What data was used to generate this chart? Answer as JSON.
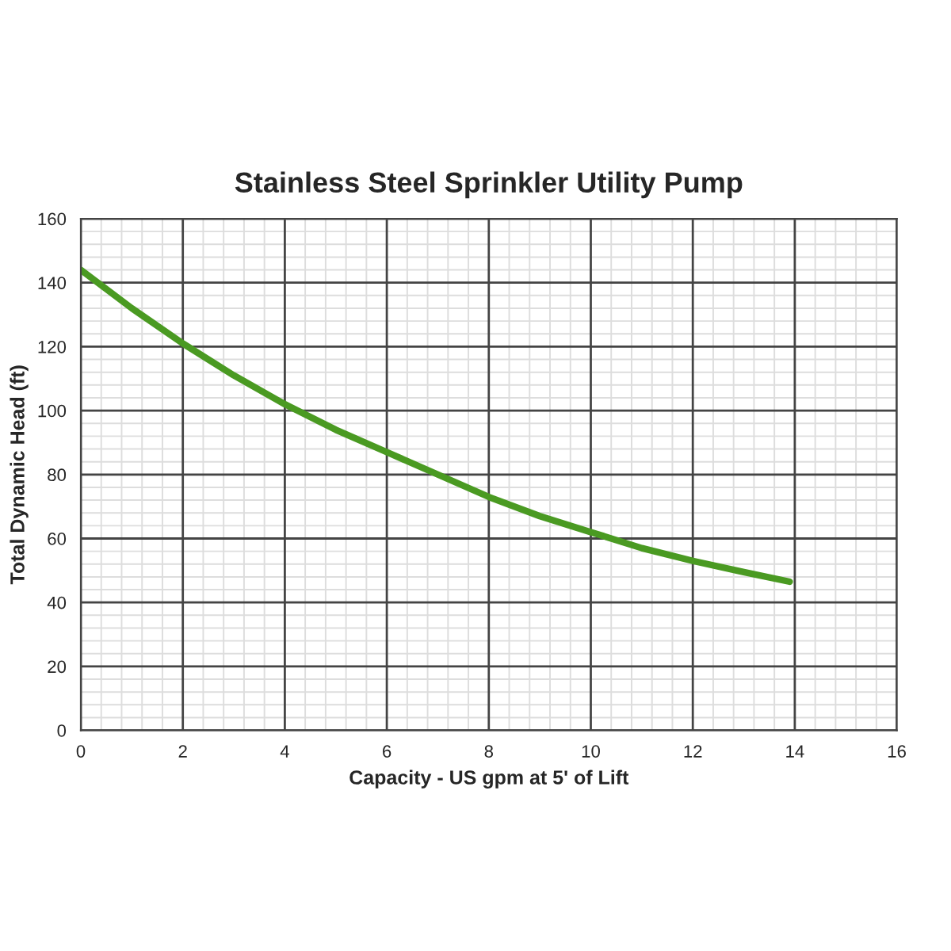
{
  "chart_data": {
    "type": "line",
    "title": "Stainless Steel Sprinkler Utility Pump",
    "xlabel": "Capacity - US gpm at 5' of Lift",
    "ylabel": "Total Dynamic Head (ft)",
    "x": [
      0,
      1,
      2,
      3,
      4,
      5,
      6,
      7,
      8,
      9,
      10,
      11,
      12,
      13,
      13.9
    ],
    "series": [
      {
        "color": "#4a9a22",
        "values": [
          144,
          132,
          121,
          111,
          102,
          94,
          87,
          80,
          73,
          67,
          62,
          57,
          53,
          49.5,
          46.5
        ]
      }
    ],
    "xlim": [
      0,
      16
    ],
    "xticks": [
      0,
      2,
      4,
      6,
      8,
      10,
      12,
      14,
      16
    ],
    "ylim": [
      0,
      160
    ],
    "yticks": [
      0,
      20,
      40,
      60,
      80,
      100,
      120,
      140,
      160
    ],
    "grid": true,
    "marker": "none",
    "line_style": "solid"
  }
}
